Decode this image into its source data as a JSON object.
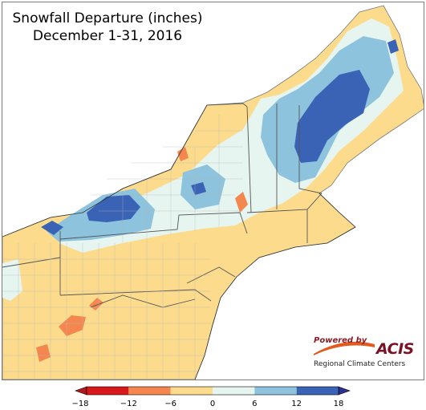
{
  "map": {
    "title": "Snowfall Departure (inches)",
    "subtitle": "December 1-31, 2016",
    "region": "Northeast United States",
    "land_color": "#ffffff",
    "border_color": "#7a7a7a"
  },
  "branding": {
    "powered_by": "Powered by",
    "logo_text": "ACIS",
    "organization": "Regional Climate Centers",
    "logo_color": "#7a1226",
    "swoosh_color": "#e25a1c"
  },
  "legend": {
    "breaks": [
      -18,
      -12,
      -6,
      0,
      6,
      12,
      18
    ],
    "tick_labels": [
      "−18",
      "−12",
      "−6",
      "0",
      "6",
      "12",
      "18"
    ],
    "colors": [
      "#d7191c",
      "#f4874f",
      "#fddb8c",
      "#e6f5f0",
      "#8ec3de",
      "#3a63b5"
    ],
    "extend": "both"
  }
}
